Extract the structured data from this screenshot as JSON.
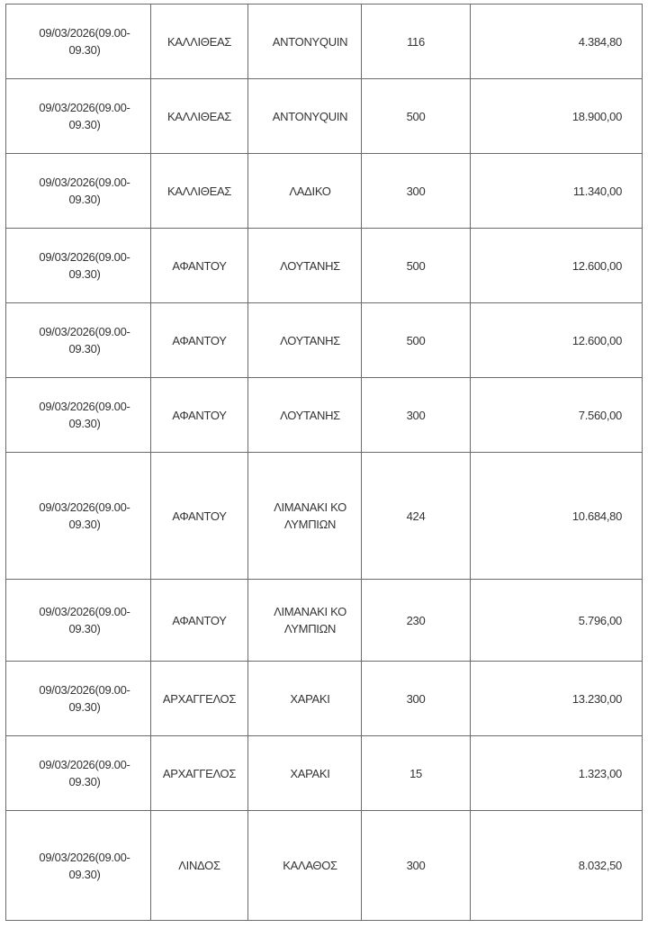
{
  "rows": [
    {
      "datetime": "09/03/2026(09.00-09.30)",
      "area": "ΚΑΛΛΙΘΕΑΣ",
      "location": "ΑΝΤΟΝΥQUIN",
      "quantity": "116",
      "amount": "4.384,80"
    },
    {
      "datetime": "09/03/2026(09.00-09.30)",
      "area": "ΚΑΛΛΙΘΕΑΣ",
      "location": "ΑΝΤΟΝΥQUIN",
      "quantity": "500",
      "amount": "18.900,00"
    },
    {
      "datetime": "09/03/2026(09.00-09.30)",
      "area": "ΚΑΛΛΙΘΕΑΣ",
      "location": "ΛΑΔΙΚΟ",
      "quantity": "300",
      "amount": "11.340,00"
    },
    {
      "datetime": "09/03/2026(09.00-09.30)",
      "area": "ΑΦΑΝΤΟΥ",
      "location": "ΛΟΥΤΑΝΗΣ",
      "quantity": "500",
      "amount": "12.600,00"
    },
    {
      "datetime": "09/03/2026(09.00-09.30)",
      "area": "ΑΦΑΝΤΟΥ",
      "location": "ΛΟΥΤΑΝΗΣ",
      "quantity": "500",
      "amount": "12.600,00"
    },
    {
      "datetime": "09/03/2026(09.00-09.30)",
      "area": "ΑΦΑΝΤΟΥ",
      "location": "ΛΟΥΤΑΝΗΣ",
      "quantity": "300",
      "amount": "7.560,00"
    },
    {
      "datetime": "09/03/2026(09.00-09.30)",
      "area": "ΑΦΑΝΤΟΥ",
      "location": "ΛΙΜΑΝΑΚΙ ΚΟΛΥΜΠΙΩΝ",
      "quantity": "424",
      "amount": "10.684,80"
    },
    {
      "datetime": "09/03/2026(09.00-09.30)",
      "area": "ΑΦΑΝΤΟΥ",
      "location": "ΛΙΜΑΝΑΚΙ ΚΟΛΥΜΠΙΩΝ",
      "quantity": "230",
      "amount": "5.796,00"
    },
    {
      "datetime": "09/03/2026(09.00-09.30)",
      "area": "ΑΡΧΑΓΓΕΛΟΣ",
      "location": "ΧΑΡΑΚΙ",
      "quantity": "300",
      "amount": "13.230,00"
    },
    {
      "datetime": "09/03/2026(09.00-09.30)",
      "area": "ΑΡΧΑΓΓΕΛΟΣ",
      "location": "ΧΑΡΑΚΙ",
      "quantity": "15",
      "amount": "1.323,00"
    },
    {
      "datetime": "09/03/2026(09.00-09.30)",
      "area": "ΛΙΝΔΟΣ",
      "location": "ΚΑΛΑΘΟΣ",
      "quantity": "300",
      "amount": "8.032,50"
    }
  ]
}
